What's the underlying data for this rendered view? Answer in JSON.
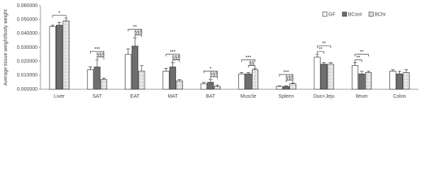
{
  "chart_data": {
    "type": "bar",
    "y_label": "Average tissue weight/body weight",
    "categories": [
      "Liver",
      "SAT",
      "EAT",
      "MAT",
      "BAT",
      "Muscle",
      "Spleen",
      "Duo+Jeju",
      "Ileum",
      "Colon"
    ],
    "series": [
      {
        "name": "GF",
        "color": "#ffffff",
        "values": [
          0.045,
          0.014,
          0.025,
          0.013,
          0.004,
          0.011,
          0.002,
          0.023,
          0.017,
          0.013
        ],
        "errors": [
          0.001,
          0.002,
          0.004,
          0.002,
          0.001,
          0.001,
          0.0005,
          0.002,
          0.002,
          0.001
        ]
      },
      {
        "name": "BCont",
        "color": "#6e6e6e",
        "values": [
          0.046,
          0.016,
          0.031,
          0.016,
          0.005,
          0.011,
          0.002,
          0.018,
          0.011,
          0.011
        ],
        "errors": [
          0.002,
          0.005,
          0.006,
          0.003,
          0.002,
          0.001,
          0.0005,
          0.001,
          0.002,
          0.002
        ]
      },
      {
        "name": "BChr",
        "color": "#ffffff",
        "pattern": "dotted",
        "values": [
          0.049,
          0.007,
          0.013,
          0.006,
          0.002,
          0.014,
          0.004,
          0.018,
          0.012,
          0.012
        ],
        "errors": [
          0.002,
          0.001,
          0.004,
          0.001,
          0.001,
          0.001,
          0.0005,
          0.001,
          0.001,
          0.002
        ]
      }
    ],
    "ylim": [
      0,
      0.06
    ],
    "yticks": [
      {
        "value": 0,
        "label": "0.000000"
      },
      {
        "value": 0.01,
        "label": "0.010000"
      },
      {
        "value": 0.02,
        "label": "0.020000"
      },
      {
        "value": 0.03,
        "label": "0.030000"
      },
      {
        "value": 0.04,
        "label": "0.040000"
      },
      {
        "value": 0.05,
        "label": "0.050000"
      },
      {
        "value": 0.06,
        "label": "0.060000"
      }
    ],
    "legend": "top-right",
    "annotations": [
      "*",
      "***",
      "§§§",
      "**",
      "§§§",
      "***",
      "§§§",
      "*",
      "§§§",
      "***",
      "§§",
      "***",
      "§§§",
      "**",
      "**",
      "**",
      "**"
    ]
  }
}
